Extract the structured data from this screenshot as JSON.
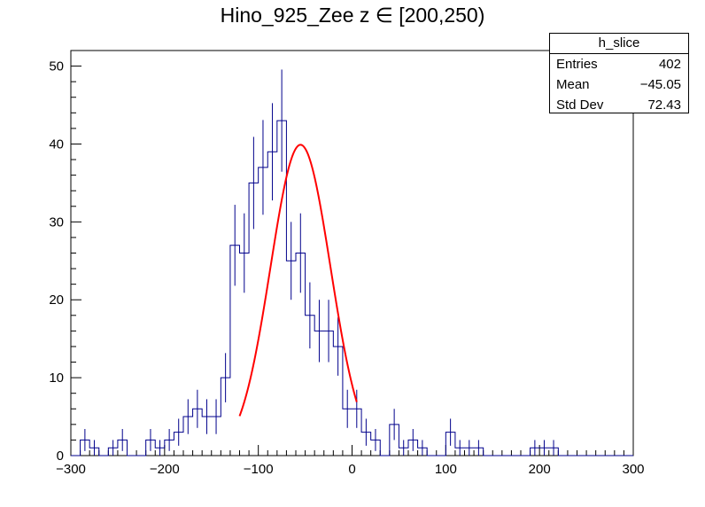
{
  "title": "Hino_925_Zee z  ∈ [200,250)",
  "stats_box": {
    "name": "h_slice",
    "entries_label": "Entries",
    "entries_value": "402",
    "mean_label": "Mean",
    "mean_value": "−45.05",
    "stddev_label": "Std Dev",
    "stddev_value": "72.43"
  },
  "colors": {
    "histogram": "#00008b",
    "fit": "#ff0000",
    "axis": "#000000"
  },
  "chart_data": {
    "type": "histogram",
    "bin_width": 10,
    "xlim": [
      -300,
      300
    ],
    "ylim": [
      0,
      52
    ],
    "x_ticks": [
      -300,
      -200,
      -100,
      0,
      100,
      200,
      300
    ],
    "x_tick_labels": [
      "−300",
      "−200",
      "−100",
      "0",
      "100",
      "200",
      "300"
    ],
    "y_ticks": [
      0,
      10,
      20,
      30,
      40,
      50
    ],
    "y_tick_labels": [
      "0",
      "10",
      "20",
      "30",
      "40",
      "50"
    ],
    "bin_low_edges": [
      -300,
      -290,
      -280,
      -270,
      -260,
      -250,
      -240,
      -230,
      -220,
      -210,
      -200,
      -190,
      -180,
      -170,
      -160,
      -150,
      -140,
      -130,
      -120,
      -110,
      -100,
      -90,
      -80,
      -70,
      -60,
      -50,
      -40,
      -30,
      -20,
      -10,
      0,
      10,
      20,
      30,
      40,
      50,
      60,
      70,
      80,
      90,
      100,
      110,
      120,
      130,
      140,
      150,
      160,
      170,
      180,
      190,
      200,
      210,
      220,
      230,
      240,
      250,
      260,
      270,
      280,
      290
    ],
    "counts": [
      0,
      2,
      1,
      0,
      1,
      2,
      0,
      0,
      2,
      1,
      2,
      3,
      5,
      6,
      5,
      5,
      10,
      27,
      26,
      35,
      37,
      39,
      43,
      25,
      26,
      18,
      16,
      16,
      14,
      6,
      6,
      3,
      2,
      0,
      4,
      1,
      2,
      1,
      0,
      0,
      3,
      1,
      1,
      1,
      0,
      0,
      0,
      0,
      0,
      1,
      1,
      1,
      0,
      0,
      0,
      0,
      0,
      0,
      0,
      0
    ],
    "fit": {
      "function": "gaus",
      "constant": 39.9,
      "mean": -55,
      "sigma": 32,
      "x_range": [
        -120,
        5
      ]
    }
  }
}
